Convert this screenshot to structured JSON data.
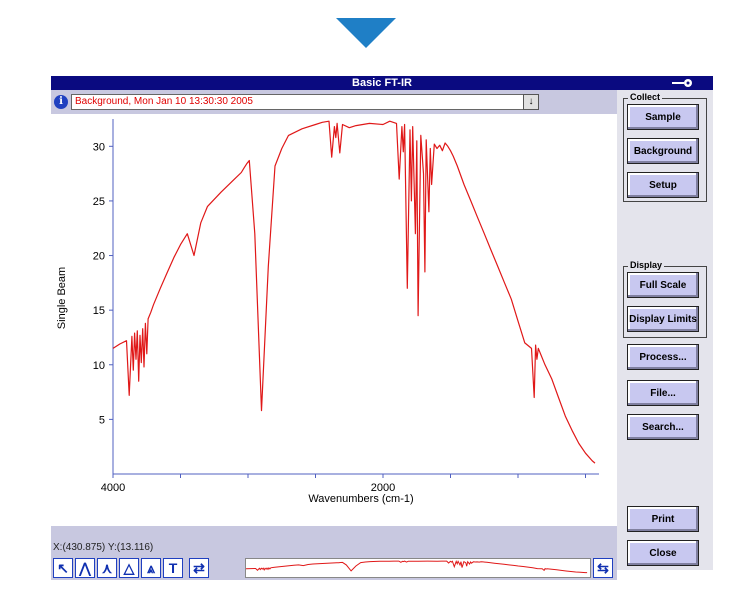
{
  "window": {
    "title": "Basic FT-IR"
  },
  "status": {
    "text": "Background, Mon Jan 10 13:30:30 2005"
  },
  "cursor_readout": "X:(430.875) Y:(13.116)",
  "panel": {
    "collect_label": "Collect",
    "display_label": "Display",
    "buttons": {
      "sample": "Sample",
      "background": "Background",
      "setup": "Setup",
      "full_scale": "Full Scale",
      "display_limits": "Display Limits",
      "process": "Process...",
      "file": "File...",
      "search": "Search...",
      "print": "Print",
      "close": "Close"
    }
  },
  "toolbar": {
    "text_tool": "T"
  },
  "colors": {
    "spectrum": "#e01818",
    "accent": "#1f7fc6",
    "titlebar": "#0a0a80"
  },
  "chart_data": {
    "type": "line",
    "xlabel": "Wavenumbers (cm-1)",
    "ylabel": "Single Beam",
    "xlim": [
      4000,
      400
    ],
    "ylim": [
      0,
      32.5
    ],
    "x_ticks": [
      "4000",
      "2000"
    ],
    "y_ticks": [
      "30",
      "25",
      "20",
      "15",
      "10",
      "5"
    ],
    "grid": false,
    "series": [
      {
        "x": [
          4000,
          3950,
          3900,
          3880,
          3860,
          3850,
          3840,
          3830,
          3820,
          3810,
          3800,
          3790,
          3780,
          3770,
          3760,
          3750,
          3740,
          3720,
          3700,
          3650,
          3600,
          3550,
          3500,
          3450,
          3400,
          3350,
          3300,
          3200,
          3100,
          3050,
          3030,
          3010,
          2990,
          2950,
          2900,
          2850,
          2800,
          2750,
          2700,
          2600,
          2500,
          2450,
          2400,
          2380,
          2360,
          2350,
          2340,
          2320,
          2300,
          2250,
          2200,
          2100,
          2000,
          1950,
          1900,
          1880,
          1860,
          1850,
          1840,
          1820,
          1800,
          1790,
          1780,
          1760,
          1750,
          1740,
          1720,
          1700,
          1690,
          1680,
          1660,
          1650,
          1640,
          1620,
          1600,
          1580,
          1560,
          1540,
          1520,
          1500,
          1480,
          1450,
          1400,
          1350,
          1300,
          1250,
          1200,
          1150,
          1100,
          1050,
          1000,
          950,
          900,
          880,
          870,
          860,
          850,
          800,
          750,
          700,
          650,
          600,
          550,
          500,
          450,
          430
        ],
        "y": [
          11.5,
          11.9,
          12.2,
          7.2,
          12.6,
          9.5,
          12.9,
          10.5,
          13.1,
          8.5,
          12.7,
          10.2,
          13.3,
          9.8,
          13.8,
          11.0,
          14.2,
          14.8,
          15.5,
          17.0,
          18.4,
          19.8,
          21.0,
          22.0,
          20.0,
          23.0,
          24.5,
          25.8,
          27.0,
          27.6,
          28.0,
          28.4,
          28.7,
          22.0,
          5.8,
          19.0,
          28.2,
          29.8,
          31.0,
          31.6,
          32.0,
          32.2,
          32.3,
          29.0,
          31.8,
          30.8,
          32.1,
          29.4,
          32.0,
          31.7,
          31.9,
          32.1,
          32.0,
          32.3,
          32.1,
          27.0,
          31.8,
          29.5,
          32.0,
          17.0,
          31.5,
          25.0,
          31.8,
          22.0,
          30.5,
          14.5,
          31.0,
          27.5,
          18.5,
          30.6,
          24.0,
          29.8,
          26.5,
          30.2,
          29.8,
          30.1,
          29.6,
          30.3,
          30.0,
          29.6,
          29.1,
          28.2,
          26.5,
          25.0,
          23.5,
          22.0,
          20.5,
          19.0,
          17.5,
          16.0,
          14.0,
          12.0,
          11.5,
          7.0,
          11.8,
          10.5,
          11.5,
          10.0,
          8.7,
          7.0,
          5.3,
          4.0,
          2.8,
          1.9,
          1.2,
          1.0
        ],
        "color": "#e01818"
      }
    ]
  }
}
